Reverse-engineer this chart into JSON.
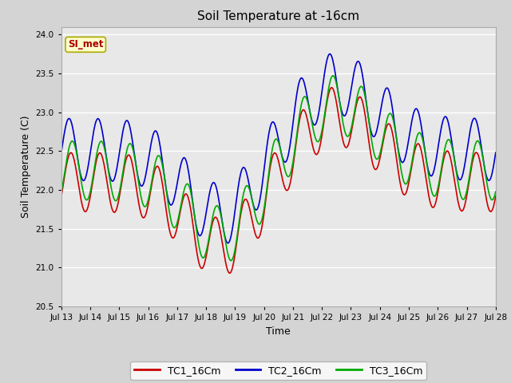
{
  "title": "Soil Temperature at -16cm",
  "xlabel": "Time",
  "ylabel": "Soil Temperature (C)",
  "ylim": [
    20.5,
    24.1
  ],
  "yticks": [
    20.5,
    21.0,
    21.5,
    22.0,
    22.5,
    23.0,
    23.5,
    24.0
  ],
  "fig_facecolor": "#d4d4d4",
  "ax_facecolor": "#e8e8e8",
  "line_colors": {
    "TC1": "#cc0000",
    "TC2": "#0000cc",
    "TC3": "#00aa00"
  },
  "annotation_text": "SI_met",
  "annotation_color": "#aa0000",
  "annotation_bg": "#ffffcc",
  "annotation_edge": "#aaaa00",
  "x_tick_labels": [
    "Jul 13",
    "Jul 14",
    "Jul 15",
    "Jul 16",
    "Jul 17",
    "Jul 18",
    "Jul 19",
    "Jul 20",
    "Jul 21",
    "Jul 22",
    "Jul 23",
    "Jul 24",
    "Jul 25",
    "Jul 26",
    "Jul 27",
    "Jul 28"
  ]
}
